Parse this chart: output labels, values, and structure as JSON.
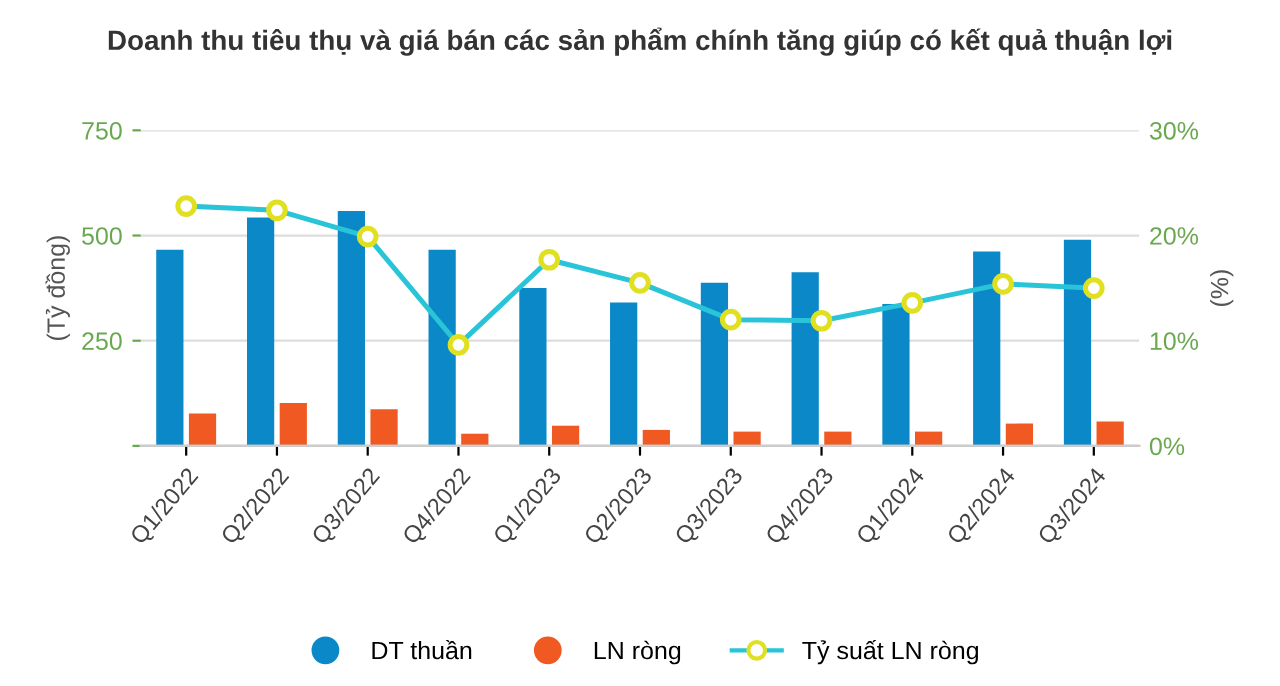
{
  "chart_data": {
    "type": "bar",
    "title": "Doanh thu tiêu thụ và giá bán các sản phẩm chính tăng giúp có kết quả thuận lợi",
    "ylabel": "(Tỷ đồng)",
    "y2label": "(%)",
    "categories": [
      "Q1/2022",
      "Q2/2022",
      "Q3/2022",
      "Q4/2022",
      "Q1/2023",
      "Q2/2023",
      "Q3/2023",
      "Q4/2023",
      "Q1/2024",
      "Q2/2024",
      "Q3/2024"
    ],
    "series": [
      {
        "name": "DT thuần",
        "color": "#0a88c8",
        "values": [
          466,
          543,
          558,
          466,
          375,
          341,
          388,
          413,
          337,
          462,
          490
        ]
      },
      {
        "name": "LN ròng",
        "color": "#f05a22",
        "values": [
          77,
          102,
          87,
          29,
          48,
          38,
          34,
          34,
          34,
          53,
          58
        ]
      },
      {
        "name": "Tỷ suất LN ròng",
        "type": "line",
        "axis": "y2",
        "color": "#29c4d8",
        "marker": "circle",
        "values": [
          22.8,
          22.4,
          19.9,
          9.6,
          17.7,
          15.5,
          12.0,
          11.9,
          13.6,
          15.4,
          15.0
        ]
      }
    ],
    "ylim": [
      0,
      750
    ],
    "yticks": [
      {
        "value": 0,
        "label": null
      },
      250,
      500,
      750
    ],
    "y2lim": [
      0,
      30
    ],
    "y2ticks": [
      {
        "value": 0,
        "label": "0%"
      },
      {
        "value": 10,
        "label": "10%"
      },
      {
        "value": 20,
        "label": "20%"
      },
      {
        "value": 30,
        "label": "30%"
      }
    ],
    "grid": "y",
    "legend": "bottom"
  }
}
